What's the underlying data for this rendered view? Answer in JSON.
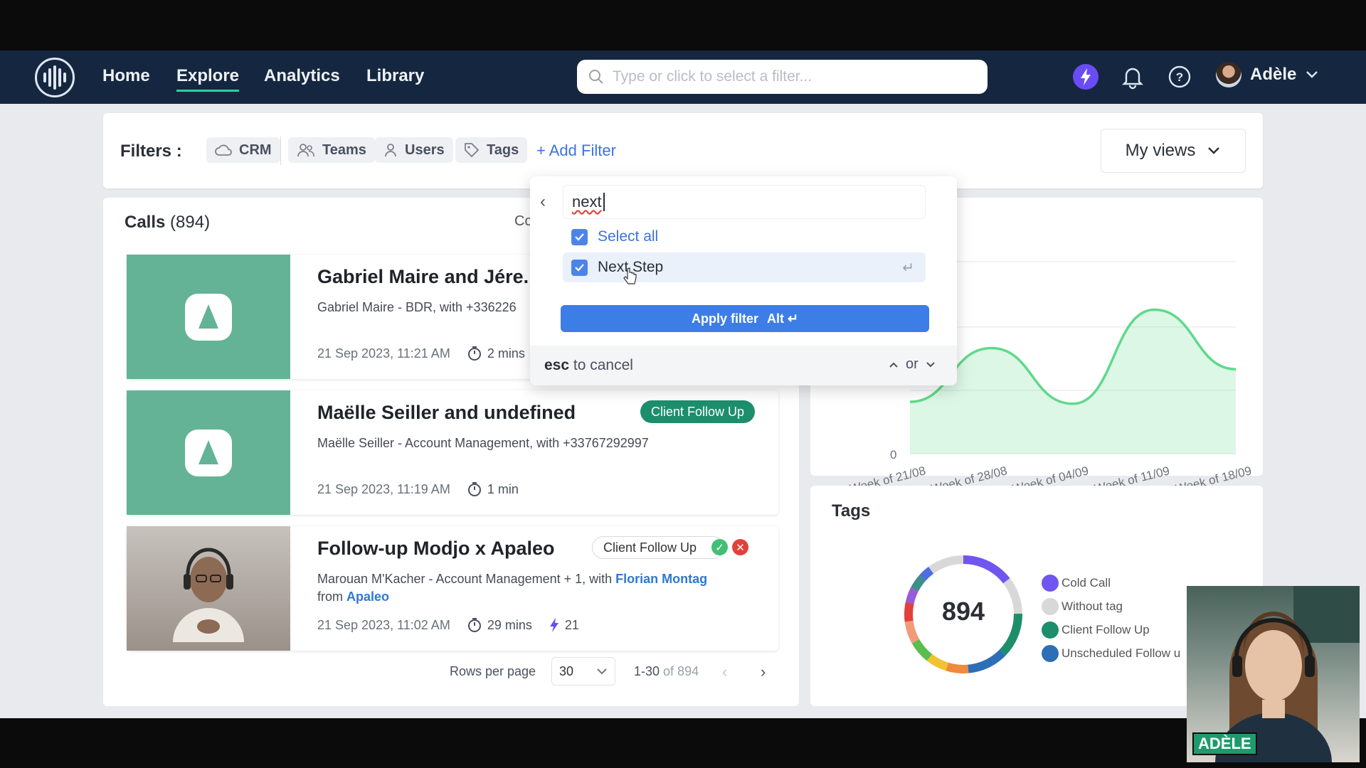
{
  "nav": {
    "links": [
      "Home",
      "Explore",
      "Analytics",
      "Library"
    ],
    "search_placeholder": "Type or click to select a filter...",
    "user_name": "Adèle"
  },
  "filters": {
    "label": "Filters :",
    "chips": [
      "CRM",
      "Teams",
      "Users",
      "Tags"
    ],
    "add_filter": "+ Add Filter",
    "my_views": "My views"
  },
  "calls": {
    "title": "Calls",
    "count": "(894)",
    "co_partial": "Co",
    "items": [
      {
        "title": "Gabriel Maire and Jére.",
        "subtitle": "Gabriel Maire - BDR, with +336226",
        "date": "21 Sep 2023, 11:21 AM",
        "duration": "2 mins"
      },
      {
        "title": "Maëlle Seiller and undefined",
        "subtitle": "Maëlle Seiller - Account Management, with +33767292997",
        "date": "21 Sep 2023, 11:19 AM",
        "duration": "1 min",
        "tag": "Client Follow Up"
      },
      {
        "title": "Follow-up Modjo x Apaleo",
        "subtitle_prefix": "Marouan M'Kacher - Account Management + 1, with",
        "subtitle_link": "Florian Montag",
        "subtitle_from": "from",
        "subtitle_company": "Apaleo",
        "date": "21 Sep 2023, 11:02 AM",
        "duration": "29 mins",
        "score": "21",
        "tag": "Client Follow Up"
      }
    ],
    "pager": {
      "rows_label": "Rows per page",
      "rows_value": "30",
      "range": "1-30",
      "of_total": "of 894"
    }
  },
  "dropdown": {
    "query": "next",
    "options": [
      {
        "label": "Select all",
        "checked": true
      },
      {
        "label": "Next Step",
        "checked": true
      }
    ],
    "apply_label": "Apply filter",
    "apply_shortcut": "Alt ↵",
    "esc_key": "esc",
    "esc_text": "to cancel",
    "or_label": "or"
  },
  "chart_data": {
    "type": "area",
    "categories": [
      "Week of 21/08",
      "Week of 28/08",
      "Week of 04/09",
      "Week of 11/09",
      "Week of 18/09"
    ],
    "y_tick_labels": [
      "0"
    ],
    "series": [
      {
        "values": [
          0.27,
          0.55,
          0.26,
          0.75,
          0.44
        ]
      }
    ],
    "color": "#5fd98a",
    "grid": true
  },
  "tags": {
    "title": "Tags",
    "total": "894",
    "legend": [
      {
        "label": "Cold Call",
        "color": "#7155f0"
      },
      {
        "label": "Without tag",
        "color": "#d8d8d8"
      },
      {
        "label": "Client Follow Up",
        "color": "#1d8e6c"
      },
      {
        "label": "Unscheduled Follow u",
        "color": "#2c6fb6"
      }
    ]
  },
  "webcam": {
    "name": "ADÈLE"
  }
}
